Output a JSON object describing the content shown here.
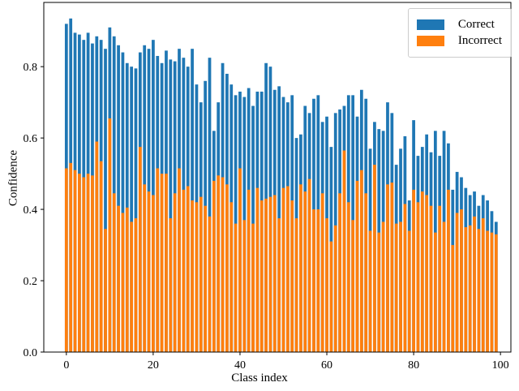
{
  "chart_data": {
    "type": "bar",
    "title": "",
    "xlabel": "Class index",
    "ylabel": "Confidence",
    "grid": false,
    "xlim": [
      -5.2,
      102.4
    ],
    "ylim": [
      0,
      0.98
    ],
    "bar_width": 0.7,
    "x_ticks": [
      0,
      20,
      40,
      60,
      80,
      100
    ],
    "x_tick_labels": [
      "0",
      "20",
      "40",
      "60",
      "80",
      "100"
    ],
    "y_ticks": [
      0.0,
      0.2,
      0.4,
      0.6,
      0.8
    ],
    "y_tick_labels": [
      "0.0",
      "0.2",
      "0.4",
      "0.6",
      "0.8"
    ],
    "legend": {
      "position": "upper right",
      "entries": [
        {
          "label": "Correct",
          "color": "#1f77b4"
        },
        {
          "label": "Incorrect",
          "color": "#ff7f0e"
        }
      ]
    },
    "x": [
      0,
      1,
      2,
      3,
      4,
      5,
      6,
      7,
      8,
      9,
      10,
      11,
      12,
      13,
      14,
      15,
      16,
      17,
      18,
      19,
      20,
      21,
      22,
      23,
      24,
      25,
      26,
      27,
      28,
      29,
      30,
      31,
      32,
      33,
      34,
      35,
      36,
      37,
      38,
      39,
      40,
      41,
      42,
      43,
      44,
      45,
      46,
      47,
      48,
      49,
      50,
      51,
      52,
      53,
      54,
      55,
      56,
      57,
      58,
      59,
      60,
      61,
      62,
      63,
      64,
      65,
      66,
      67,
      68,
      69,
      70,
      71,
      72,
      73,
      74,
      75,
      76,
      77,
      78,
      79,
      80,
      81,
      82,
      83,
      84,
      85,
      86,
      87,
      88,
      89,
      90,
      91,
      92,
      93,
      94,
      95,
      96,
      97,
      98,
      99
    ],
    "series": [
      {
        "name": "Correct",
        "color": "#1f77b4",
        "values": [
          0.92,
          0.935,
          0.895,
          0.89,
          0.875,
          0.895,
          0.865,
          0.885,
          0.875,
          0.85,
          0.91,
          0.885,
          0.86,
          0.84,
          0.81,
          0.8,
          0.795,
          0.84,
          0.86,
          0.85,
          0.875,
          0.83,
          0.81,
          0.845,
          0.82,
          0.815,
          0.85,
          0.825,
          0.8,
          0.85,
          0.75,
          0.7,
          0.76,
          0.825,
          0.62,
          0.7,
          0.81,
          0.78,
          0.75,
          0.72,
          0.73,
          0.715,
          0.74,
          0.69,
          0.73,
          0.73,
          0.81,
          0.8,
          0.735,
          0.745,
          0.715,
          0.7,
          0.72,
          0.6,
          0.61,
          0.69,
          0.67,
          0.71,
          0.72,
          0.645,
          0.66,
          0.575,
          0.67,
          0.68,
          0.69,
          0.72,
          0.72,
          0.66,
          0.735,
          0.71,
          0.57,
          0.645,
          0.625,
          0.62,
          0.7,
          0.67,
          0.525,
          0.57,
          0.605,
          0.425,
          0.65,
          0.55,
          0.575,
          0.61,
          0.56,
          0.62,
          0.55,
          0.62,
          0.585,
          0.455,
          0.505,
          0.49,
          0.46,
          0.44,
          0.45,
          0.41,
          0.44,
          0.425,
          0.395,
          0.365
        ]
      },
      {
        "name": "Incorrect",
        "color": "#ff7f0e",
        "values": [
          0.515,
          0.53,
          0.51,
          0.5,
          0.49,
          0.5,
          0.495,
          0.59,
          0.535,
          0.345,
          0.655,
          0.445,
          0.41,
          0.39,
          0.405,
          0.365,
          0.375,
          0.575,
          0.47,
          0.45,
          0.44,
          0.515,
          0.5,
          0.5,
          0.375,
          0.445,
          0.515,
          0.455,
          0.465,
          0.425,
          0.42,
          0.435,
          0.41,
          0.38,
          0.48,
          0.495,
          0.49,
          0.47,
          0.42,
          0.36,
          0.515,
          0.37,
          0.455,
          0.36,
          0.46,
          0.425,
          0.43,
          0.435,
          0.44,
          0.375,
          0.46,
          0.465,
          0.425,
          0.375,
          0.47,
          0.45,
          0.485,
          0.4,
          0.4,
          0.445,
          0.375,
          0.31,
          0.355,
          0.445,
          0.565,
          0.42,
          0.37,
          0.48,
          0.51,
          0.445,
          0.34,
          0.525,
          0.335,
          0.365,
          0.47,
          0.475,
          0.36,
          0.365,
          0.415,
          0.34,
          0.455,
          0.42,
          0.45,
          0.44,
          0.41,
          0.335,
          0.41,
          0.365,
          0.455,
          0.3,
          0.39,
          0.4,
          0.35,
          0.355,
          0.38,
          0.345,
          0.375,
          0.34,
          0.335,
          0.33
        ]
      }
    ]
  }
}
